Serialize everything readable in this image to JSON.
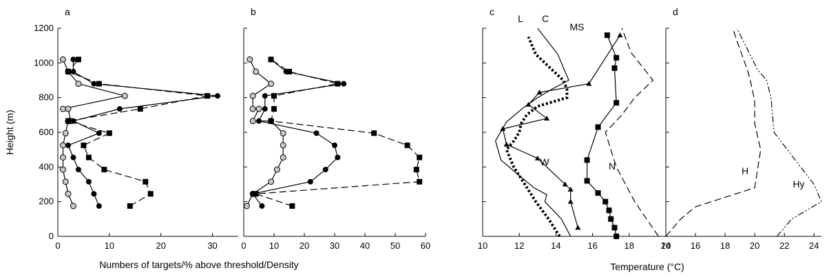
{
  "chart_data": [
    {
      "panel": "a",
      "type": "line",
      "xlim": [
        0,
        35
      ],
      "ylim": [
        0,
        1200
      ],
      "xticks": [
        0,
        10,
        20,
        30
      ],
      "yticks": [
        0,
        200,
        400,
        600,
        800,
        1000,
        1200
      ],
      "ylabel": "Height (m)",
      "series": [
        {
          "style": "grey-circle-solid",
          "x": [
            3,
            2,
            1.5,
            1,
            1,
            1,
            1.5,
            2,
            2.5,
            2,
            1,
            13,
            4,
            2,
            1
          ],
          "y": [
            175,
            245,
            315,
            385,
            455,
            525,
            595,
            665,
            665,
            735,
            735,
            810,
            880,
            950,
            1020
          ]
        },
        {
          "style": "black-circle-solid",
          "x": [
            8,
            7,
            6,
            4,
            3,
            2,
            8,
            3,
            12,
            31,
            7,
            3,
            3
          ],
          "y": [
            175,
            245,
            315,
            385,
            455,
            525,
            595,
            665,
            735,
            810,
            880,
            950,
            1020
          ]
        },
        {
          "style": "black-square-dashed",
          "x": [
            14,
            18,
            17,
            9,
            6,
            5,
            10,
            2,
            16,
            29,
            8,
            2,
            4
          ],
          "y": [
            175,
            245,
            315,
            385,
            455,
            525,
            595,
            665,
            735,
            810,
            880,
            950,
            1020
          ]
        }
      ]
    },
    {
      "panel": "b",
      "type": "line",
      "xlim": [
        0,
        60
      ],
      "ylim": [
        0,
        1200
      ],
      "xticks": [
        0,
        10,
        20,
        30,
        40,
        50,
        60
      ],
      "series": [
        {
          "style": "grey-circle-solid",
          "x": [
            1,
            3,
            9,
            11,
            13,
            13,
            13,
            9,
            3,
            5,
            3,
            3,
            9,
            4,
            2
          ],
          "y": [
            175,
            245,
            315,
            385,
            455,
            525,
            595,
            665,
            665,
            735,
            735,
            810,
            880,
            950,
            1020
          ]
        },
        {
          "style": "black-circle-solid",
          "x": [
            6,
            3,
            22,
            27,
            31,
            30,
            24,
            5,
            7,
            7,
            33,
            14,
            9
          ],
          "y": [
            175,
            245,
            315,
            385,
            455,
            525,
            595,
            665,
            735,
            810,
            880,
            950,
            1020
          ]
        },
        {
          "style": "black-square-dashed",
          "x": [
            16,
            4,
            58,
            57,
            58,
            54,
            43,
            9,
            10,
            10,
            31,
            15,
            9
          ],
          "y": [
            175,
            245,
            315,
            385,
            455,
            525,
            595,
            665,
            735,
            810,
            880,
            950,
            1020
          ]
        }
      ]
    },
    {
      "panel": "c",
      "type": "line",
      "xlim": [
        10,
        20
      ],
      "ylim": [
        0,
        1200
      ],
      "xticks": [
        10,
        12,
        14,
        16,
        18,
        20
      ],
      "series": [
        {
          "name": "L",
          "style": "dotted-square",
          "x": [
            14.2,
            13.6,
            12.9,
            12.3,
            11.7,
            11.3,
            11.7,
            12.0,
            12.1,
            12.4,
            13.0,
            14.6,
            14.6,
            14.4,
            12.9,
            12.5
          ],
          "y": [
            0,
            100,
            200,
            300,
            400,
            500,
            550,
            600,
            650,
            700,
            750,
            800,
            850,
            900,
            1050,
            1150
          ]
        },
        {
          "name": "C",
          "style": "solid",
          "x": [
            14.8,
            14.3,
            13.4,
            13.5,
            12.8,
            12.0,
            11.0,
            10.7,
            11.3,
            12.2,
            13.0,
            13.8,
            14.7,
            14.1,
            13.0
          ],
          "y": [
            0,
            100,
            200,
            240,
            280,
            350,
            440,
            550,
            660,
            740,
            800,
            850,
            900,
            1050,
            1200
          ]
        },
        {
          "name": "MS",
          "style": "solid-square",
          "x": [
            17.3,
            17.2,
            17.0,
            16.9,
            16.7,
            16.3,
            15.7,
            15.7,
            16.3,
            17.3,
            17.2,
            17.3,
            16.8
          ],
          "y": [
            0,
            50,
            100,
            150,
            200,
            250,
            320,
            440,
            630,
            770,
            970,
            1030,
            1160
          ]
        },
        {
          "name": "W",
          "style": "solid-triangle",
          "x": [
            15.2,
            14.8,
            14.8,
            14.5,
            13.0,
            11.3,
            11.1,
            13.5,
            12.5,
            13.1,
            15.8,
            17.5
          ],
          "y": [
            50,
            200,
            270,
            300,
            450,
            530,
            620,
            680,
            760,
            830,
            880,
            1160
          ]
        },
        {
          "name": "N",
          "style": "dashed",
          "x": [
            19.6,
            18.3,
            17.3,
            16.7,
            17.6,
            18.3,
            19.3,
            18.1,
            17.6
          ],
          "y": [
            0,
            200,
            400,
            600,
            700,
            800,
            900,
            1060,
            1200
          ]
        }
      ],
      "xlabel": "Temperature (°C)"
    },
    {
      "panel": "d",
      "type": "line",
      "xlim": [
        14,
        24.5
      ],
      "ylim": [
        0,
        1200
      ],
      "xticks": [
        14,
        16,
        18,
        20,
        22,
        24
      ],
      "series": [
        {
          "name": "H",
          "style": "dashed",
          "x": [
            14.0,
            15.0,
            16.0,
            20.0,
            20.4,
            20.0,
            20.0,
            19.7,
            19.5,
            19.0,
            18.5
          ],
          "y": [
            0,
            100,
            170,
            280,
            500,
            650,
            780,
            900,
            960,
            1080,
            1200
          ]
        },
        {
          "name": "Hy",
          "style": "dash-dot",
          "x": [
            21.5,
            22.5,
            24.5,
            24.0,
            21.3,
            21.2,
            21.1,
            20.8,
            20.2,
            18.8
          ],
          "y": [
            0,
            100,
            200,
            300,
            600,
            700,
            800,
            900,
            960,
            1200
          ]
        }
      ]
    }
  ],
  "shared": {
    "panel_labels": [
      "a",
      "b",
      "c",
      "d"
    ],
    "xlabel_left": "Numbers of targets/% above threshold/Density"
  }
}
